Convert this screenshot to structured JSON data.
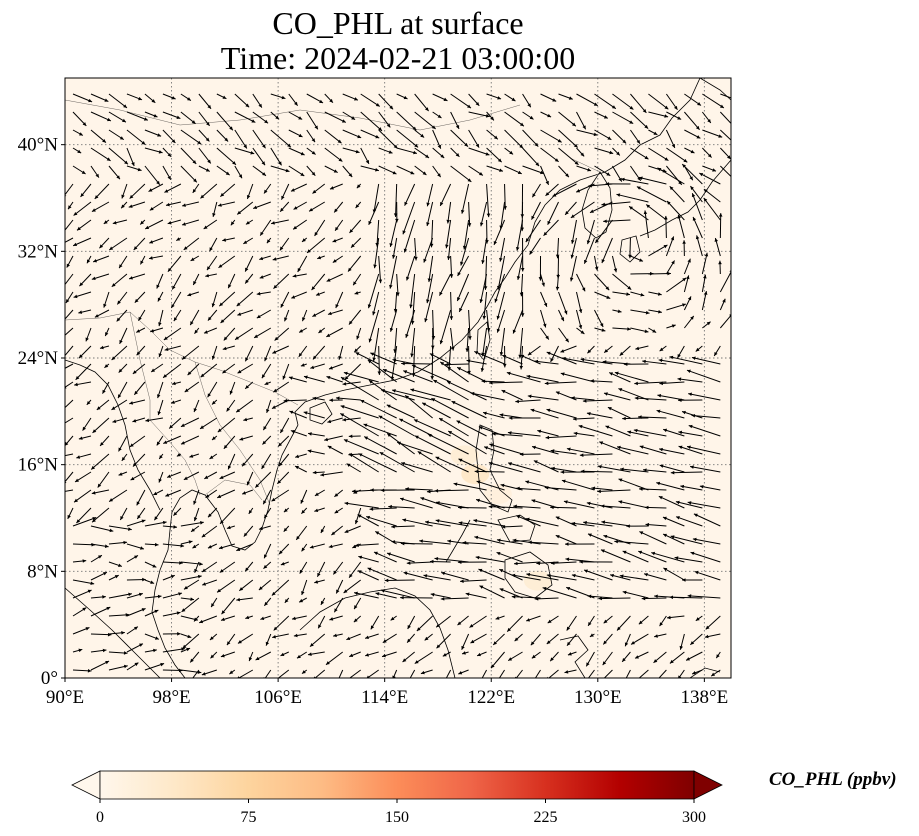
{
  "title": {
    "line1": "CO_PHL at surface",
    "line2": "Time: 2024-02-21 03:00:00"
  },
  "map": {
    "projection": "PlateCarree",
    "lon_range": [
      90,
      140
    ],
    "lat_range": [
      0,
      45
    ],
    "background_color": "#fff5e9",
    "gridlines": "dotted",
    "x_ticks": [
      {
        "lon": 90,
        "label": "90°E"
      },
      {
        "lon": 98,
        "label": "98°E"
      },
      {
        "lon": 106,
        "label": "106°E"
      },
      {
        "lon": 114,
        "label": "114°E"
      },
      {
        "lon": 122,
        "label": "122°E"
      },
      {
        "lon": 130,
        "label": "130°E"
      },
      {
        "lon": 138,
        "label": "138°E"
      }
    ],
    "y_ticks": [
      {
        "lat": 0,
        "label": "0°"
      },
      {
        "lat": 8,
        "label": "8°N"
      },
      {
        "lat": 16,
        "label": "16°N"
      },
      {
        "lat": 24,
        "label": "24°N"
      },
      {
        "lat": 32,
        "label": "32°N"
      },
      {
        "lat": 40,
        "label": "40°N"
      }
    ],
    "co_hotspots": [
      {
        "lon": 120.8,
        "lat": 15.3,
        "value": 40
      },
      {
        "lon": 120.0,
        "lat": 16.7,
        "value": 25
      },
      {
        "lon": 125.5,
        "lat": 7.3,
        "value": 25
      },
      {
        "lon": 122.5,
        "lat": 13.8,
        "value": 18
      }
    ],
    "wind_vectors": "quiver field of surface wind arrows"
  },
  "colorbar": {
    "label": "CO_PHL (ppbv)",
    "min": 0,
    "max": 300,
    "colormap": "OrRd",
    "extend": "both",
    "colors": [
      "#fff7ec",
      "#fee8c8",
      "#fdd49e",
      "#fdbb84",
      "#fc8d59",
      "#ef6548",
      "#d7301f",
      "#b30000",
      "#7f0000"
    ],
    "ticks": [
      {
        "value": 0,
        "label": "0"
      },
      {
        "value": 75,
        "label": "75"
      },
      {
        "value": 150,
        "label": "150"
      },
      {
        "value": 225,
        "label": "225"
      },
      {
        "value": 300,
        "label": "300"
      }
    ]
  }
}
